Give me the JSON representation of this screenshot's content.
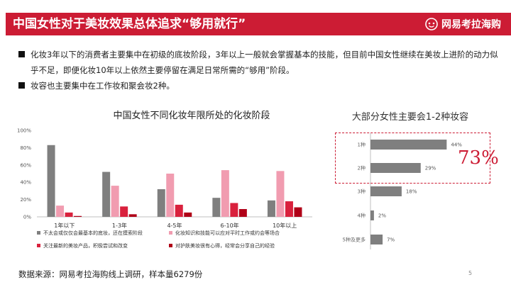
{
  "header": {
    "title": "中国女性对于美妆效果总体追求“够用就行”",
    "logo_text": "网易考拉海购"
  },
  "bullets": [
    "化妆3年以下的消费者主要集中在初级的底妆阶段，3年以上一般就会掌握基本的技能，但目前中国女性继续在美妆上进阶的动力似乎不足，即便化妆10年以上依然主要停留在满足日常所需的“够用”阶段。",
    "妆容也主要集中在工作妆和聚会妆2种。"
  ],
  "source": "数据来源：网易考拉海购线上调研，样本量6279份",
  "page_number": "5",
  "highlight_value": "73%",
  "chart_data": [
    {
      "type": "bar",
      "title": "中国女性不同化妆年限所处的化妆阶段",
      "categories": [
        "1年以下",
        "1-3年",
        "4-5年",
        "6-10年",
        "10年以上"
      ],
      "ylim": [
        0,
        100
      ],
      "yticks": [
        "0%",
        "20%",
        "40%",
        "60%",
        "80%",
        "100%"
      ],
      "legend_position": "bottom",
      "series": [
        {
          "name": "不太会或仅仅会最基本的底妆，还在摸索阶段",
          "color": "#7f7f7f",
          "values": [
            83,
            52,
            32,
            22,
            19
          ]
        },
        {
          "name": "化妆知识和技能可以应对平时工作或约会等场合",
          "color": "#f19cb0",
          "values": [
            13,
            36,
            50,
            54,
            53
          ]
        },
        {
          "name": "关注最新的美妆产品，积极尝试和改变",
          "color": "#d9213d",
          "values": [
            5,
            12,
            14,
            16,
            18
          ]
        },
        {
          "name": "对护肤美妆很有心得，经常会分享自己的经验",
          "color": "#b00018",
          "values": [
            1,
            3,
            5,
            9,
            11
          ]
        }
      ]
    },
    {
      "type": "bar",
      "orientation": "horizontal",
      "title": "大部分女性主要会1-2种妆容",
      "categories": [
        "1种",
        "2种",
        "3种",
        "4种",
        "5种及更多"
      ],
      "values": [
        44,
        29,
        18,
        2,
        7
      ],
      "labels": [
        "44%",
        "29%",
        "18%",
        "2%",
        "7%"
      ],
      "color": "#7f7f7f"
    }
  ]
}
